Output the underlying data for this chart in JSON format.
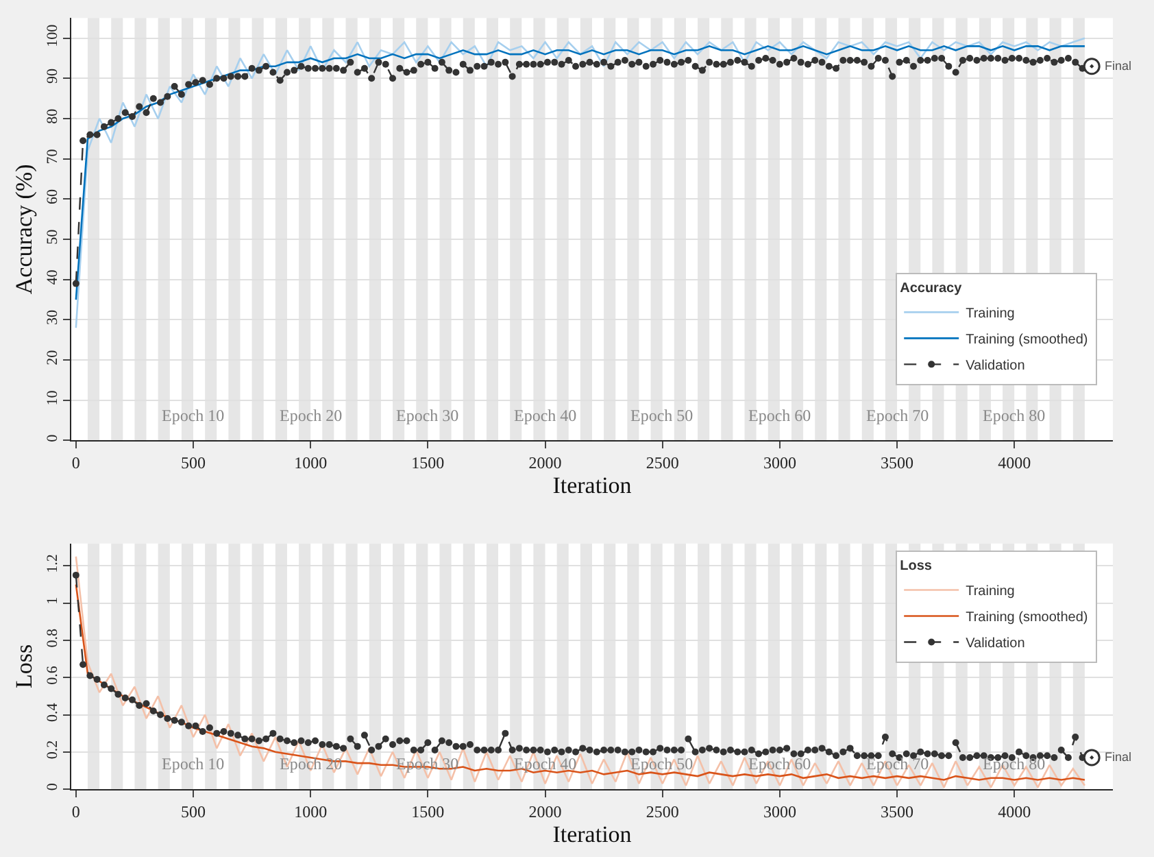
{
  "chart_data": [
    {
      "type": "line",
      "ylabel": "Accuracy (%)",
      "xlabel": "Iteration",
      "legend_title": "Accuracy",
      "legend": "bottom right",
      "grid": "y",
      "xlim": [
        -20,
        4420
      ],
      "xticks": [
        0,
        500,
        1000,
        1500,
        2000,
        2500,
        3000,
        3500,
        4000
      ],
      "ylim": [
        0,
        105
      ],
      "yticks": [
        0,
        10,
        20,
        30,
        40,
        50,
        60,
        70,
        80,
        90,
        100
      ],
      "x": [
        0,
        50,
        100,
        150,
        200,
        250,
        300,
        350,
        400,
        450,
        500,
        550,
        600,
        650,
        700,
        750,
        800,
        850,
        900,
        950,
        1000,
        1050,
        1100,
        1150,
        1200,
        1250,
        1300,
        1350,
        1400,
        1450,
        1500,
        1550,
        1600,
        1650,
        1700,
        1750,
        1800,
        1850,
        1900,
        1950,
        2000,
        2050,
        2100,
        2150,
        2200,
        2250,
        2300,
        2350,
        2400,
        2450,
        2500,
        2550,
        2600,
        2650,
        2700,
        2750,
        2800,
        2850,
        2900,
        2950,
        3000,
        3050,
        3100,
        3150,
        3200,
        3250,
        3300,
        3350,
        3400,
        3450,
        3500,
        3550,
        3600,
        3650,
        3700,
        3750,
        3800,
        3850,
        3900,
        3950,
        4000,
        4050,
        4100,
        4150,
        4200,
        4250,
        4300
      ],
      "series": [
        {
          "name": "Training",
          "color": "#a6cfee",
          "marker": "none",
          "line_style": "solid",
          "values": [
            28,
            72,
            80,
            74,
            84,
            78,
            86,
            80,
            88,
            84,
            91,
            86,
            93,
            88,
            95,
            90,
            96,
            91,
            97,
            92,
            98,
            92,
            97,
            94,
            99,
            93,
            97,
            96,
            99,
            94,
            98,
            94,
            99,
            96,
            98,
            93,
            99,
            97,
            98,
            95,
            99,
            95,
            99,
            96,
            98,
            93,
            99,
            96,
            99,
            97,
            99,
            95,
            99,
            96,
            99,
            97,
            99,
            94,
            99,
            97,
            99,
            96,
            99,
            97,
            95,
            99,
            98,
            99,
            96,
            99,
            98,
            99,
            95,
            99,
            97,
            99,
            98,
            99,
            96,
            99,
            98,
            99,
            97,
            99,
            98,
            99,
            100
          ]
        },
        {
          "name": "Training (smoothed)",
          "color": "#0072bd",
          "marker": "none",
          "line_style": "solid",
          "values": [
            35,
            75,
            77,
            78,
            80,
            81,
            83,
            84,
            86,
            87,
            88,
            89,
            90,
            91,
            92,
            92,
            93,
            93,
            94,
            94,
            95,
            94,
            95,
            95,
            96,
            95,
            95,
            96,
            95,
            96,
            96,
            95,
            96,
            97,
            96,
            96,
            97,
            96,
            96,
            97,
            96,
            97,
            97,
            96,
            97,
            96,
            97,
            97,
            96,
            97,
            97,
            96,
            97,
            97,
            98,
            97,
            97,
            96,
            97,
            98,
            97,
            97,
            98,
            97,
            96,
            97,
            98,
            97,
            97,
            98,
            97,
            98,
            97,
            97,
            98,
            97,
            98,
            98,
            97,
            98,
            97,
            98,
            98,
            97,
            98,
            98,
            98
          ]
        },
        {
          "name": "Validation",
          "color": "#333333",
          "marker": "circle",
          "line_style": "dashed",
          "x": [
            0,
            30,
            60,
            90,
            120,
            150,
            180,
            210,
            240,
            270,
            300,
            330,
            360,
            390,
            420,
            450,
            480,
            510,
            540,
            570,
            600,
            630,
            660,
            690,
            720,
            750,
            780,
            810,
            840,
            870,
            900,
            930,
            960,
            990,
            1020,
            1050,
            1080,
            1110,
            1140,
            1170,
            1200,
            1230,
            1260,
            1290,
            1320,
            1350,
            1380,
            1410,
            1440,
            1470,
            1500,
            1530,
            1560,
            1590,
            1620,
            1650,
            1680,
            1710,
            1740,
            1770,
            1800,
            1830,
            1860,
            1890,
            1920,
            1950,
            1980,
            2010,
            2040,
            2070,
            2100,
            2130,
            2160,
            2190,
            2220,
            2250,
            2280,
            2310,
            2340,
            2370,
            2400,
            2430,
            2460,
            2490,
            2520,
            2550,
            2580,
            2610,
            2640,
            2670,
            2700,
            2730,
            2760,
            2790,
            2820,
            2850,
            2880,
            2910,
            2940,
            2970,
            3000,
            3030,
            3060,
            3090,
            3120,
            3150,
            3180,
            3210,
            3240,
            3270,
            3300,
            3330,
            3360,
            3390,
            3420,
            3450,
            3480,
            3510,
            3540,
            3570,
            3600,
            3630,
            3660,
            3690,
            3720,
            3750,
            3780,
            3810,
            3840,
            3870,
            3900,
            3930,
            3960,
            3990,
            4020,
            4050,
            4080,
            4110,
            4140,
            4170,
            4200,
            4230,
            4260,
            4290,
            4320
          ],
          "values": [
            39,
            74.5,
            76,
            76,
            78,
            79,
            80,
            81.5,
            80.5,
            83,
            81.5,
            85,
            84,
            85.5,
            88,
            86,
            88.5,
            89,
            89.5,
            88.5,
            90,
            90,
            90.5,
            90.5,
            90.5,
            92.5,
            92,
            93,
            91.5,
            89.5,
            91.5,
            92,
            93,
            92.5,
            92.5,
            92.5,
            92.5,
            92.5,
            92,
            94,
            91.5,
            92.5,
            90,
            94,
            93.5,
            90,
            92.5,
            91.5,
            92,
            93.5,
            94,
            92.5,
            94,
            92,
            91.5,
            93.5,
            92,
            93,
            93,
            94,
            93.5,
            94,
            90.5,
            93.5,
            93.5,
            93.5,
            93.5,
            94,
            94,
            93.5,
            94.5,
            93,
            93.5,
            94,
            93.5,
            94,
            93,
            94,
            94.5,
            93.5,
            94,
            93,
            93.5,
            94.5,
            94,
            93.5,
            94,
            94.5,
            93,
            92,
            94,
            93.5,
            93.5,
            94,
            94.5,
            94,
            93,
            94.5,
            95,
            94.5,
            93.5,
            94,
            95,
            94,
            93.5,
            94.5,
            94,
            93,
            92.5,
            94.5,
            94.5,
            94.5,
            94,
            93,
            95,
            94.5,
            90.5,
            94,
            94.5,
            93,
            94.5,
            94.5,
            95,
            95,
            93,
            91.5,
            94.5,
            95,
            94.5,
            95,
            95,
            95,
            94.5,
            95,
            95,
            94.5,
            94,
            94.5,
            95,
            94,
            94.5,
            95,
            94,
            92.5,
            93
          ]
        },
        {
          "type": "scatter",
          "color": "#333333",
          "marker": "circle",
          "x": [
            4330
          ],
          "values": [
            93
          ]
        }
      ],
      "annotations": [
        {
          "text": "Final",
          "x": 4330,
          "y": 93
        },
        {
          "text": "Epoch 10",
          "x": 500,
          "y": 3
        },
        {
          "text": "Epoch 20",
          "x": 1000,
          "y": 3
        },
        {
          "text": "Epoch 30",
          "x": 1500,
          "y": 3
        },
        {
          "text": "Epoch 40",
          "x": 2000,
          "y": 3
        },
        {
          "text": "Epoch 50",
          "x": 2500,
          "y": 3
        },
        {
          "text": "Epoch 60",
          "x": 3000,
          "y": 3
        },
        {
          "text": "Epoch 70",
          "x": 3500,
          "y": 3
        },
        {
          "text": "Epoch 80",
          "x": 4000,
          "y": 3
        }
      ],
      "bands": [
        {
          "axis": "x",
          "from": 50,
          "to": 100,
          "color": "#e6e6e6"
        },
        {
          "axis": "x",
          "from": 150,
          "to": 200,
          "color": "#e6e6e6"
        },
        {
          "axis": "x",
          "from": 250,
          "to": 300,
          "color": "#e6e6e6"
        },
        {
          "axis": "x",
          "from": 350,
          "to": 400,
          "color": "#e6e6e6"
        },
        {
          "axis": "x",
          "from": 450,
          "to": 500,
          "color": "#e6e6e6"
        },
        {
          "axis": "x",
          "from": 550,
          "to": 600,
          "color": "#e6e6e6"
        },
        {
          "axis": "x",
          "from": 650,
          "to": 700,
          "color": "#e6e6e6"
        },
        {
          "axis": "x",
          "from": 750,
          "to": 800,
          "color": "#e6e6e6"
        },
        {
          "axis": "x",
          "from": 850,
          "to": 900,
          "color": "#e6e6e6"
        },
        {
          "axis": "x",
          "from": 950,
          "to": 1000,
          "color": "#e6e6e6"
        },
        {
          "axis": "x",
          "from": 1050,
          "to": 1100,
          "color": "#e6e6e6"
        },
        {
          "axis": "x",
          "from": 1150,
          "to": 1200,
          "color": "#e6e6e6"
        },
        {
          "axis": "x",
          "from": 1250,
          "to": 1300,
          "color": "#e6e6e6"
        },
        {
          "axis": "x",
          "from": 1350,
          "to": 1400,
          "color": "#e6e6e6"
        },
        {
          "axis": "x",
          "from": 1450,
          "to": 1500,
          "color": "#e6e6e6"
        },
        {
          "axis": "x",
          "from": 1550,
          "to": 1600,
          "color": "#e6e6e6"
        },
        {
          "axis": "x",
          "from": 1650,
          "to": 1700,
          "color": "#e6e6e6"
        },
        {
          "axis": "x",
          "from": 1750,
          "to": 1800,
          "color": "#e6e6e6"
        },
        {
          "axis": "x",
          "from": 1850,
          "to": 1900,
          "color": "#e6e6e6"
        },
        {
          "axis": "x",
          "from": 1950,
          "to": 2000,
          "color": "#e6e6e6"
        },
        {
          "axis": "x",
          "from": 2050,
          "to": 2100,
          "color": "#e6e6e6"
        },
        {
          "axis": "x",
          "from": 2150,
          "to": 2200,
          "color": "#e6e6e6"
        },
        {
          "axis": "x",
          "from": 2250,
          "to": 2300,
          "color": "#e6e6e6"
        },
        {
          "axis": "x",
          "from": 2350,
          "to": 2400,
          "color": "#e6e6e6"
        },
        {
          "axis": "x",
          "from": 2450,
          "to": 2500,
          "color": "#e6e6e6"
        },
        {
          "axis": "x",
          "from": 2550,
          "to": 2600,
          "color": "#e6e6e6"
        },
        {
          "axis": "x",
          "from": 2650,
          "to": 2700,
          "color": "#e6e6e6"
        },
        {
          "axis": "x",
          "from": 2750,
          "to": 2800,
          "color": "#e6e6e6"
        },
        {
          "axis": "x",
          "from": 2850,
          "to": 2900,
          "color": "#e6e6e6"
        },
        {
          "axis": "x",
          "from": 2950,
          "to": 3000,
          "color": "#e6e6e6"
        },
        {
          "axis": "x",
          "from": 3050,
          "to": 3100,
          "color": "#e6e6e6"
        },
        {
          "axis": "x",
          "from": 3150,
          "to": 3200,
          "color": "#e6e6e6"
        },
        {
          "axis": "x",
          "from": 3250,
          "to": 3300,
          "color": "#e6e6e6"
        },
        {
          "axis": "x",
          "from": 3350,
          "to": 3400,
          "color": "#e6e6e6"
        },
        {
          "axis": "x",
          "from": 3450,
          "to": 3500,
          "color": "#e6e6e6"
        },
        {
          "axis": "x",
          "from": 3550,
          "to": 3600,
          "color": "#e6e6e6"
        },
        {
          "axis": "x",
          "from": 3650,
          "to": 3700,
          "color": "#e6e6e6"
        },
        {
          "axis": "x",
          "from": 3750,
          "to": 3800,
          "color": "#e6e6e6"
        },
        {
          "axis": "x",
          "from": 3850,
          "to": 3900,
          "color": "#e6e6e6"
        },
        {
          "axis": "x",
          "from": 3950,
          "to": 4000,
          "color": "#e6e6e6"
        },
        {
          "axis": "x",
          "from": 4050,
          "to": 4100,
          "color": "#e6e6e6"
        },
        {
          "axis": "x",
          "from": 4150,
          "to": 4200,
          "color": "#e6e6e6"
        },
        {
          "axis": "x",
          "from": 4250,
          "to": 4300,
          "color": "#e6e6e6"
        }
      ]
    },
    {
      "type": "line",
      "ylabel": "Loss",
      "xlabel": "Iteration",
      "legend_title": "Loss",
      "legend": "top right",
      "grid": "y",
      "xlim": [
        -20,
        4420
      ],
      "xticks": [
        0,
        500,
        1000,
        1500,
        2000,
        2500,
        3000,
        3500,
        4000
      ],
      "ylim": [
        0,
        1.32
      ],
      "yticks": [
        0,
        0.2,
        0.4,
        0.6,
        0.8,
        1,
        1.2
      ],
      "x": [
        0,
        50,
        100,
        150,
        200,
        250,
        300,
        350,
        400,
        450,
        500,
        550,
        600,
        650,
        700,
        750,
        800,
        850,
        900,
        950,
        1000,
        1050,
        1100,
        1150,
        1200,
        1250,
        1300,
        1350,
        1400,
        1450,
        1500,
        1550,
        1600,
        1650,
        1700,
        1750,
        1800,
        1850,
        1900,
        1950,
        2000,
        2050,
        2100,
        2150,
        2200,
        2250,
        2300,
        2350,
        2400,
        2450,
        2500,
        2550,
        2600,
        2650,
        2700,
        2750,
        2800,
        2850,
        2900,
        2950,
        3000,
        3050,
        3100,
        3150,
        3200,
        3250,
        3300,
        3350,
        3400,
        3450,
        3500,
        3550,
        3600,
        3650,
        3700,
        3750,
        3800,
        3850,
        3900,
        3950,
        4000,
        4050,
        4100,
        4150,
        4200,
        4250,
        4300
      ],
      "series": [
        {
          "name": "Training",
          "color": "#f4c0a8",
          "marker": "none",
          "line_style": "solid",
          "values": [
            1.25,
            0.68,
            0.52,
            0.62,
            0.45,
            0.55,
            0.38,
            0.5,
            0.33,
            0.45,
            0.28,
            0.4,
            0.22,
            0.35,
            0.18,
            0.3,
            0.15,
            0.28,
            0.12,
            0.26,
            0.1,
            0.24,
            0.09,
            0.22,
            0.08,
            0.22,
            0.07,
            0.2,
            0.06,
            0.21,
            0.06,
            0.2,
            0.05,
            0.22,
            0.04,
            0.2,
            0.05,
            0.18,
            0.04,
            0.2,
            0.03,
            0.18,
            0.04,
            0.19,
            0.03,
            0.16,
            0.04,
            0.2,
            0.03,
            0.17,
            0.03,
            0.16,
            0.02,
            0.18,
            0.03,
            0.15,
            0.02,
            0.17,
            0.03,
            0.15,
            0.02,
            0.16,
            0.02,
            0.14,
            0.03,
            0.15,
            0.02,
            0.14,
            0.02,
            0.15,
            0.02,
            0.13,
            0.02,
            0.14,
            0.01,
            0.15,
            0.02,
            0.12,
            0.01,
            0.13,
            0.02,
            0.12,
            0.01,
            0.13,
            0.02,
            0.11,
            0.02
          ]
        },
        {
          "name": "Training (smoothed)",
          "color": "#d95319",
          "marker": "none",
          "line_style": "solid",
          "values": [
            1.1,
            0.62,
            0.58,
            0.54,
            0.5,
            0.47,
            0.44,
            0.41,
            0.38,
            0.36,
            0.33,
            0.31,
            0.29,
            0.27,
            0.25,
            0.23,
            0.22,
            0.2,
            0.19,
            0.18,
            0.17,
            0.16,
            0.15,
            0.15,
            0.14,
            0.14,
            0.13,
            0.13,
            0.12,
            0.12,
            0.12,
            0.11,
            0.11,
            0.12,
            0.1,
            0.11,
            0.1,
            0.1,
            0.11,
            0.09,
            0.1,
            0.09,
            0.1,
            0.09,
            0.1,
            0.08,
            0.09,
            0.1,
            0.08,
            0.09,
            0.08,
            0.09,
            0.08,
            0.07,
            0.09,
            0.08,
            0.07,
            0.08,
            0.07,
            0.08,
            0.07,
            0.08,
            0.06,
            0.07,
            0.08,
            0.06,
            0.07,
            0.06,
            0.07,
            0.06,
            0.07,
            0.06,
            0.07,
            0.06,
            0.05,
            0.07,
            0.06,
            0.05,
            0.06,
            0.06,
            0.05,
            0.06,
            0.05,
            0.06,
            0.05,
            0.06,
            0.05
          ]
        },
        {
          "name": "Validation",
          "color": "#333333",
          "marker": "circle",
          "line_style": "dashed",
          "x": [
            0,
            30,
            60,
            90,
            120,
            150,
            180,
            210,
            240,
            270,
            300,
            330,
            360,
            390,
            420,
            450,
            480,
            510,
            540,
            570,
            600,
            630,
            660,
            690,
            720,
            750,
            780,
            810,
            840,
            870,
            900,
            930,
            960,
            990,
            1020,
            1050,
            1080,
            1110,
            1140,
            1170,
            1200,
            1230,
            1260,
            1290,
            1320,
            1350,
            1380,
            1410,
            1440,
            1470,
            1500,
            1530,
            1560,
            1590,
            1620,
            1650,
            1680,
            1710,
            1740,
            1770,
            1800,
            1830,
            1860,
            1890,
            1920,
            1950,
            1980,
            2010,
            2040,
            2070,
            2100,
            2130,
            2160,
            2190,
            2220,
            2250,
            2280,
            2310,
            2340,
            2370,
            2400,
            2430,
            2460,
            2490,
            2520,
            2550,
            2580,
            2610,
            2640,
            2670,
            2700,
            2730,
            2760,
            2790,
            2820,
            2850,
            2880,
            2910,
            2940,
            2970,
            3000,
            3030,
            3060,
            3090,
            3120,
            3150,
            3180,
            3210,
            3240,
            3270,
            3300,
            3330,
            3360,
            3390,
            3420,
            3450,
            3480,
            3510,
            3540,
            3570,
            3600,
            3630,
            3660,
            3690,
            3720,
            3750,
            3780,
            3810,
            3840,
            3870,
            3900,
            3930,
            3960,
            3990,
            4020,
            4050,
            4080,
            4110,
            4140,
            4170,
            4200,
            4230,
            4260,
            4290,
            4320
          ],
          "values": [
            1.15,
            0.67,
            0.61,
            0.59,
            0.56,
            0.54,
            0.51,
            0.49,
            0.48,
            0.45,
            0.46,
            0.42,
            0.4,
            0.38,
            0.37,
            0.36,
            0.34,
            0.34,
            0.31,
            0.33,
            0.3,
            0.31,
            0.3,
            0.29,
            0.27,
            0.27,
            0.26,
            0.27,
            0.3,
            0.27,
            0.26,
            0.25,
            0.26,
            0.25,
            0.26,
            0.24,
            0.24,
            0.23,
            0.22,
            0.27,
            0.23,
            0.29,
            0.21,
            0.23,
            0.27,
            0.24,
            0.26,
            0.26,
            0.21,
            0.21,
            0.25,
            0.21,
            0.26,
            0.25,
            0.23,
            0.23,
            0.24,
            0.21,
            0.21,
            0.21,
            0.21,
            0.3,
            0.21,
            0.22,
            0.21,
            0.21,
            0.21,
            0.2,
            0.21,
            0.2,
            0.21,
            0.2,
            0.22,
            0.21,
            0.2,
            0.21,
            0.21,
            0.21,
            0.2,
            0.2,
            0.21,
            0.2,
            0.2,
            0.22,
            0.21,
            0.21,
            0.21,
            0.27,
            0.2,
            0.21,
            0.22,
            0.21,
            0.2,
            0.21,
            0.2,
            0.2,
            0.21,
            0.19,
            0.2,
            0.21,
            0.21,
            0.22,
            0.19,
            0.19,
            0.21,
            0.21,
            0.22,
            0.2,
            0.18,
            0.2,
            0.22,
            0.18,
            0.18,
            0.18,
            0.18,
            0.28,
            0.19,
            0.17,
            0.19,
            0.18,
            0.2,
            0.19,
            0.19,
            0.18,
            0.18,
            0.25,
            0.17,
            0.17,
            0.18,
            0.18,
            0.17,
            0.17,
            0.18,
            0.17,
            0.2,
            0.18,
            0.17,
            0.18,
            0.18,
            0.17,
            0.21,
            0.17,
            0.28,
            0.17,
            0.17
          ]
        },
        {
          "type": "scatter",
          "color": "#333333",
          "marker": "circle",
          "x": [
            4330
          ],
          "values": [
            0.17
          ]
        }
      ],
      "annotations": [
        {
          "text": "Final",
          "x": 4330,
          "y": 0.17
        },
        {
          "text": "Epoch 10",
          "x": 500,
          "y": 0.07
        },
        {
          "text": "Epoch 20",
          "x": 1000,
          "y": 0.07
        },
        {
          "text": "Epoch 30",
          "x": 1500,
          "y": 0.07
        },
        {
          "text": "Epoch 40",
          "x": 2000,
          "y": 0.07
        },
        {
          "text": "Epoch 50",
          "x": 2500,
          "y": 0.07
        },
        {
          "text": "Epoch 60",
          "x": 3000,
          "y": 0.07
        },
        {
          "text": "Epoch 70",
          "x": 3500,
          "y": 0.07
        },
        {
          "text": "Epoch 80",
          "x": 4000,
          "y": 0.07
        }
      ],
      "bands": [
        {
          "axis": "x",
          "from": 50,
          "to": 100,
          "color": "#e6e6e6"
        },
        {
          "axis": "x",
          "from": 150,
          "to": 200,
          "color": "#e6e6e6"
        },
        {
          "axis": "x",
          "from": 250,
          "to": 300,
          "color": "#e6e6e6"
        },
        {
          "axis": "x",
          "from": 350,
          "to": 400,
          "color": "#e6e6e6"
        },
        {
          "axis": "x",
          "from": 450,
          "to": 500,
          "color": "#e6e6e6"
        },
        {
          "axis": "x",
          "from": 550,
          "to": 600,
          "color": "#e6e6e6"
        },
        {
          "axis": "x",
          "from": 650,
          "to": 700,
          "color": "#e6e6e6"
        },
        {
          "axis": "x",
          "from": 750,
          "to": 800,
          "color": "#e6e6e6"
        },
        {
          "axis": "x",
          "from": 850,
          "to": 900,
          "color": "#e6e6e6"
        },
        {
          "axis": "x",
          "from": 950,
          "to": 1000,
          "color": "#e6e6e6"
        },
        {
          "axis": "x",
          "from": 1050,
          "to": 1100,
          "color": "#e6e6e6"
        },
        {
          "axis": "x",
          "from": 1150,
          "to": 1200,
          "color": "#e6e6e6"
        },
        {
          "axis": "x",
          "from": 1250,
          "to": 1300,
          "color": "#e6e6e6"
        },
        {
          "axis": "x",
          "from": 1350,
          "to": 1400,
          "color": "#e6e6e6"
        },
        {
          "axis": "x",
          "from": 1450,
          "to": 1500,
          "color": "#e6e6e6"
        },
        {
          "axis": "x",
          "from": 1550,
          "to": 1600,
          "color": "#e6e6e6"
        },
        {
          "axis": "x",
          "from": 1650,
          "to": 1700,
          "color": "#e6e6e6"
        },
        {
          "axis": "x",
          "from": 1750,
          "to": 1800,
          "color": "#e6e6e6"
        },
        {
          "axis": "x",
          "from": 1850,
          "to": 1900,
          "color": "#e6e6e6"
        },
        {
          "axis": "x",
          "from": 1950,
          "to": 2000,
          "color": "#e6e6e6"
        },
        {
          "axis": "x",
          "from": 2050,
          "to": 2100,
          "color": "#e6e6e6"
        },
        {
          "axis": "x",
          "from": 2150,
          "to": 2200,
          "color": "#e6e6e6"
        },
        {
          "axis": "x",
          "from": 2250,
          "to": 2300,
          "color": "#e6e6e6"
        },
        {
          "axis": "x",
          "from": 2350,
          "to": 2400,
          "color": "#e6e6e6"
        },
        {
          "axis": "x",
          "from": 2450,
          "to": 2500,
          "color": "#e6e6e6"
        },
        {
          "axis": "x",
          "from": 2550,
          "to": 2600,
          "color": "#e6e6e6"
        },
        {
          "axis": "x",
          "from": 2650,
          "to": 2700,
          "color": "#e6e6e6"
        },
        {
          "axis": "x",
          "from": 2750,
          "to": 2800,
          "color": "#e6e6e6"
        },
        {
          "axis": "x",
          "from": 2850,
          "to": 2900,
          "color": "#e6e6e6"
        },
        {
          "axis": "x",
          "from": 2950,
          "to": 3000,
          "color": "#e6e6e6"
        },
        {
          "axis": "x",
          "from": 3050,
          "to": 3100,
          "color": "#e6e6e6"
        },
        {
          "axis": "x",
          "from": 3150,
          "to": 3200,
          "color": "#e6e6e6"
        },
        {
          "axis": "x",
          "from": 3250,
          "to": 3300,
          "color": "#e6e6e6"
        },
        {
          "axis": "x",
          "from": 3350,
          "to": 3400,
          "color": "#e6e6e6"
        },
        {
          "axis": "x",
          "from": 3450,
          "to": 3500,
          "color": "#e6e6e6"
        },
        {
          "axis": "x",
          "from": 3550,
          "to": 3600,
          "color": "#e6e6e6"
        },
        {
          "axis": "x",
          "from": 3650,
          "to": 3700,
          "color": "#e6e6e6"
        },
        {
          "axis": "x",
          "from": 3750,
          "to": 3800,
          "color": "#e6e6e6"
        },
        {
          "axis": "x",
          "from": 3850,
          "to": 3900,
          "color": "#e6e6e6"
        },
        {
          "axis": "x",
          "from": 3950,
          "to": 4000,
          "color": "#e6e6e6"
        },
        {
          "axis": "x",
          "from": 4050,
          "to": 4100,
          "color": "#e6e6e6"
        },
        {
          "axis": "x",
          "from": 4150,
          "to": 4200,
          "color": "#e6e6e6"
        },
        {
          "axis": "x",
          "from": 4250,
          "to": 4300,
          "color": "#e6e6e6"
        }
      ]
    }
  ]
}
